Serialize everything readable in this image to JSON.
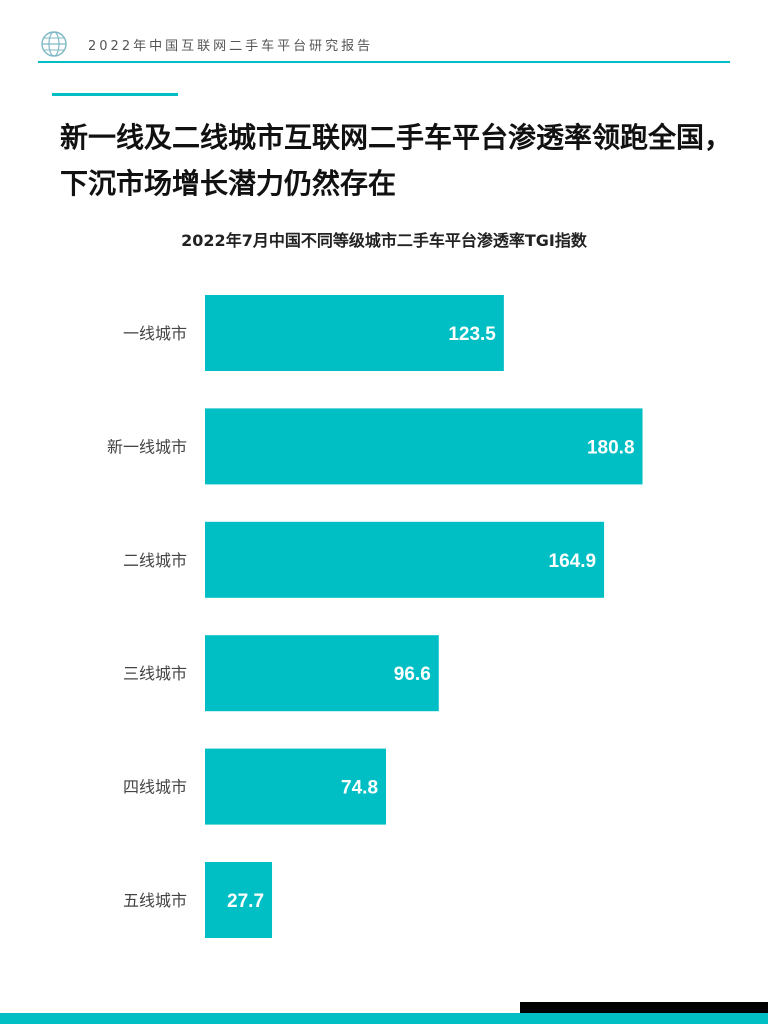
{
  "header": {
    "title": "2022年中国互联网二手车平台研究报告"
  },
  "colors": {
    "accent": "#00BFC4",
    "bar": "#00BFC4",
    "bar_label": "#ffffff",
    "category_label": "#444444",
    "logo": "#7FB8C6"
  },
  "headline": {
    "line1": "新一线及二线城市互联网二手车平台渗透率领跑全国，",
    "line2": "下沉市场增长潜力仍然存在"
  },
  "chart_data": {
    "type": "bar",
    "orientation": "horizontal",
    "title": "2022年7月中国不同等级城市二手车平台渗透率TGI指数",
    "categories": [
      "一线城市",
      "新一线城市",
      "二线城市",
      "三线城市",
      "四线城市",
      "五线城市"
    ],
    "values": [
      123.5,
      180.8,
      164.9,
      96.6,
      74.8,
      27.7
    ],
    "value_labels": [
      "123.5",
      "180.8",
      "164.9",
      "96.6",
      "74.8",
      "27.7"
    ],
    "xlabel": "",
    "ylabel": "",
    "grid": false,
    "legend": "none"
  }
}
